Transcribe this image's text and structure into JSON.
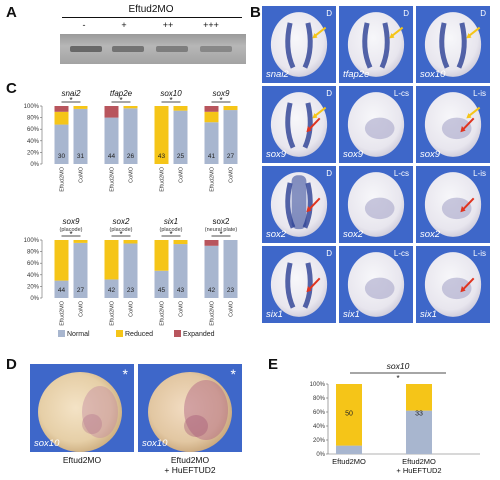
{
  "panelA": {
    "label": "A",
    "header": "Eftud2MO",
    "lanes": [
      "-",
      "+",
      "++",
      "+++"
    ]
  },
  "panelB": {
    "label": "B",
    "cells": [
      {
        "gene": "snai2",
        "view": "D",
        "arrow": "yellow"
      },
      {
        "gene": "tfap2e",
        "view": "D",
        "arrow": "yellow"
      },
      {
        "gene": "sox10",
        "view": "D",
        "arrow": "yellow"
      },
      {
        "gene": "sox9",
        "view": "D",
        "arrow": "both"
      },
      {
        "gene": "sox9",
        "view": "L-cs",
        "arrow": ""
      },
      {
        "gene": "sox9",
        "view": "L-is",
        "arrow": "both"
      },
      {
        "gene": "sox2",
        "view": "D",
        "arrow": "red"
      },
      {
        "gene": "sox2",
        "view": "L-cs",
        "arrow": ""
      },
      {
        "gene": "sox2",
        "view": "L-is",
        "arrow": "red"
      },
      {
        "gene": "six1",
        "view": "D",
        "arrow": "red"
      },
      {
        "gene": "six1",
        "view": "L-cs",
        "arrow": ""
      },
      {
        "gene": "six1",
        "view": "L-is",
        "arrow": "red"
      }
    ]
  },
  "panelC": {
    "label": "C",
    "yticks": [
      "100%",
      "80%",
      "60%",
      "40%",
      "20%",
      "0%"
    ],
    "legend": [
      {
        "label": "Normal",
        "color": "#a8b6cf"
      },
      {
        "label": "Reduced",
        "color": "#f5c518"
      },
      {
        "label": "Expanded",
        "color": "#b8555d"
      }
    ],
    "star": "*",
    "groups_top": [
      {
        "title": "snai2",
        "subtitle": "",
        "bars": [
          {
            "name": "Eftud2MO",
            "n": "30",
            "normal": 68,
            "reduced": 22,
            "expanded": 10
          },
          {
            "name": "CoMO",
            "n": "31",
            "normal": 95,
            "reduced": 5,
            "expanded": 0
          }
        ]
      },
      {
        "title": "tfap2e",
        "subtitle": "",
        "bars": [
          {
            "name": "Eftud2MO",
            "n": "44",
            "normal": 80,
            "reduced": 0,
            "expanded": 20
          },
          {
            "name": "CoMO",
            "n": "26",
            "normal": 96,
            "reduced": 4,
            "expanded": 0
          }
        ]
      },
      {
        "title": "sox10",
        "subtitle": "",
        "bars": [
          {
            "name": "Eftud2MO",
            "n": "43",
            "normal": 0,
            "reduced": 100,
            "expanded": 0
          },
          {
            "name": "CoMO",
            "n": "25",
            "normal": 92,
            "reduced": 8,
            "expanded": 0
          }
        ]
      },
      {
        "title": "sox9",
        "subtitle": "",
        "bars": [
          {
            "name": "Eftud2MO",
            "n": "41",
            "normal": 72,
            "reduced": 18,
            "expanded": 10
          },
          {
            "name": "CoMO",
            "n": "27",
            "normal": 93,
            "reduced": 7,
            "expanded": 0
          }
        ]
      }
    ],
    "groups_bottom": [
      {
        "title": "sox9",
        "subtitle": "(placode)",
        "bars": [
          {
            "name": "Eftud2MO",
            "n": "44",
            "normal": 30,
            "reduced": 70,
            "expanded": 0
          },
          {
            "name": "CoMO",
            "n": "27",
            "normal": 95,
            "reduced": 5,
            "expanded": 0
          }
        ]
      },
      {
        "title": "sox2",
        "subtitle": "(placode)",
        "bars": [
          {
            "name": "Eftud2MO",
            "n": "42",
            "normal": 32,
            "reduced": 68,
            "expanded": 0
          },
          {
            "name": "CoMO",
            "n": "23",
            "normal": 94,
            "reduced": 6,
            "expanded": 0
          }
        ]
      },
      {
        "title": "six1",
        "subtitle": "(placode)",
        "bars": [
          {
            "name": "Eftud2MO",
            "n": "45",
            "normal": 47,
            "reduced": 53,
            "expanded": 0
          },
          {
            "name": "CoMO",
            "n": "43",
            "normal": 93,
            "reduced": 7,
            "expanded": 0
          }
        ]
      },
      {
        "title": "sox2",
        "subtitle": "(neural plate)",
        "bars": [
          {
            "name": "Eftud2MO",
            "n": "42",
            "normal": 90,
            "reduced": 0,
            "expanded": 10
          },
          {
            "name": "CoMO",
            "n": "23",
            "normal": 100,
            "reduced": 0,
            "expanded": 0
          }
        ]
      }
    ]
  },
  "panelD": {
    "label": "D",
    "images": [
      {
        "gene": "sox10",
        "caption1": "Eftud2MO",
        "caption2": "",
        "star": "*"
      },
      {
        "gene": "sox10",
        "caption1": "Eftud2MO",
        "caption2": "+ HuEFTUD2",
        "star": "*"
      }
    ]
  },
  "panelE": {
    "label": "E",
    "title": "sox10",
    "star": "*",
    "yticks": [
      "100%",
      "80%",
      "60%",
      "40%",
      "20%",
      "0%"
    ],
    "bars": [
      {
        "name": "Eftud2MO",
        "name2": "",
        "n": "50",
        "normal": 12,
        "reduced": 88
      },
      {
        "name": "Eftud2MO",
        "name2": "+ HuEFTUD2",
        "n": "33",
        "normal": 62,
        "reduced": 38
      }
    ]
  }
}
